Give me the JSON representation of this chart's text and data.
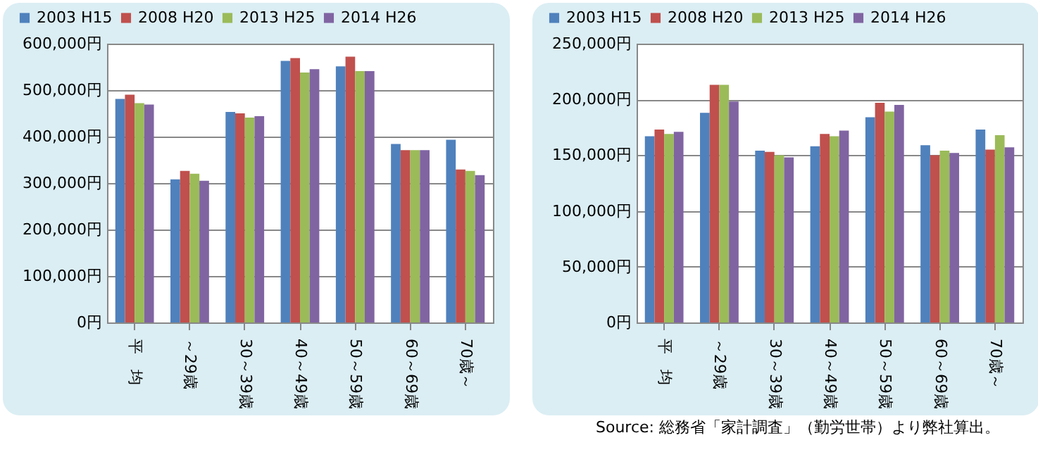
{
  "chart_data": [
    {
      "type": "bar",
      "categories": [
        "平　均",
        "～29歳",
        "30～39歳",
        "40～49歳",
        "50～59歳",
        "60～69歳",
        "70歳～"
      ],
      "series": [
        {
          "name": "2003 H15",
          "color": "#4f81bd",
          "values": [
            481000,
            308000,
            453000,
            563000,
            551000,
            384000,
            393000
          ]
        },
        {
          "name": "2008 H20",
          "color": "#c0504d",
          "values": [
            490000,
            326000,
            450000,
            569000,
            572000,
            371000,
            329000
          ]
        },
        {
          "name": "2013 H25",
          "color": "#9bbb59",
          "values": [
            472000,
            320000,
            441000,
            538000,
            541000,
            371000,
            326000
          ]
        },
        {
          "name": "2014 H26",
          "color": "#8064a2",
          "values": [
            469000,
            305000,
            444000,
            545000,
            541000,
            371000,
            317000
          ]
        }
      ],
      "ylim": [
        0,
        600000
      ],
      "yticks": [
        {
          "value": 0,
          "label": "0円"
        },
        {
          "value": 100000,
          "label": "100,000円"
        },
        {
          "value": 200000,
          "label": "200,000円"
        },
        {
          "value": 300000,
          "label": "300,000円"
        },
        {
          "value": 400000,
          "label": "400,000円"
        },
        {
          "value": 500000,
          "label": "500,000円"
        },
        {
          "value": 600000,
          "label": "600,000円"
        }
      ],
      "grid": "y",
      "legend": "top"
    },
    {
      "type": "bar",
      "categories": [
        "平　均",
        "～29歳",
        "30～39歳",
        "40～49歳",
        "50～59歳",
        "60～69歳",
        "70歳～"
      ],
      "series": [
        {
          "name": "2003 H15",
          "color": "#4f81bd",
          "values": [
            167000,
            188000,
            154000,
            158000,
            184000,
            159000,
            173000
          ]
        },
        {
          "name": "2008 H20",
          "color": "#c0504d",
          "values": [
            173000,
            213000,
            153000,
            169000,
            197000,
            150000,
            155000
          ]
        },
        {
          "name": "2013 H25",
          "color": "#9bbb59",
          "values": [
            169000,
            213000,
            150000,
            167000,
            189000,
            154000,
            168000
          ]
        },
        {
          "name": "2014 H26",
          "color": "#8064a2",
          "values": [
            171000,
            198000,
            148000,
            172000,
            195000,
            152000,
            157000
          ]
        }
      ],
      "ylim": [
        0,
        250000
      ],
      "yticks": [
        {
          "value": 0,
          "label": "0円"
        },
        {
          "value": 50000,
          "label": "50,000円"
        },
        {
          "value": 100000,
          "label": "100,000円"
        },
        {
          "value": 150000,
          "label": "150,000円"
        },
        {
          "value": 200000,
          "label": "200,000円"
        },
        {
          "value": 250000,
          "label": "250,000円"
        }
      ],
      "grid": "y",
      "legend": "top",
      "annotations": [
        "Source: 総務省「家計調査」（勤労世帯）より弊社算出。"
      ]
    }
  ]
}
